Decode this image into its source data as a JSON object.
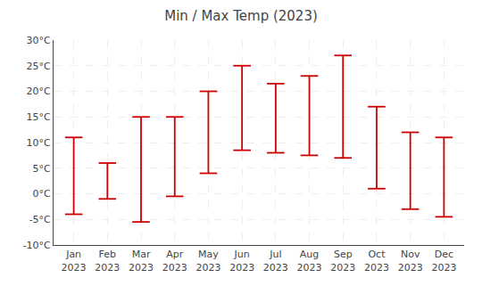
{
  "chart_data": {
    "type": "range",
    "title": "Min / Max Temp (2023)",
    "categories": [
      "Jan\n2023",
      "Feb\n2023",
      "Mar\n2023",
      "Apr\n2023",
      "May\n2023",
      "Jun\n2023",
      "Jul\n2023",
      "Aug\n2023",
      "Sep\n2023",
      "Oct\n2023",
      "Nov\n2023",
      "Dec\n2023"
    ],
    "low": [
      -4,
      -1,
      -5.5,
      -0.5,
      4,
      8.5,
      8,
      7.5,
      7,
      1,
      -3,
      -4.5
    ],
    "high": [
      11,
      6,
      15,
      15,
      20,
      25,
      21.5,
      23,
      27,
      17,
      12,
      11
    ],
    "color": "#cc0000",
    "ylim": [
      -10,
      30
    ],
    "yticks": [
      {
        "value": -10,
        "label": "-10°C"
      },
      {
        "value": -5,
        "label": "-5°C"
      },
      {
        "value": 0,
        "label": "0°C"
      },
      {
        "value": 5,
        "label": "5°C"
      },
      {
        "value": 10,
        "label": "10°C"
      },
      {
        "value": 15,
        "label": "15°C"
      },
      {
        "value": 20,
        "label": "20°C"
      },
      {
        "value": 25,
        "label": "25°C"
      },
      {
        "value": 30,
        "label": "30°C"
      }
    ],
    "grid": true
  }
}
